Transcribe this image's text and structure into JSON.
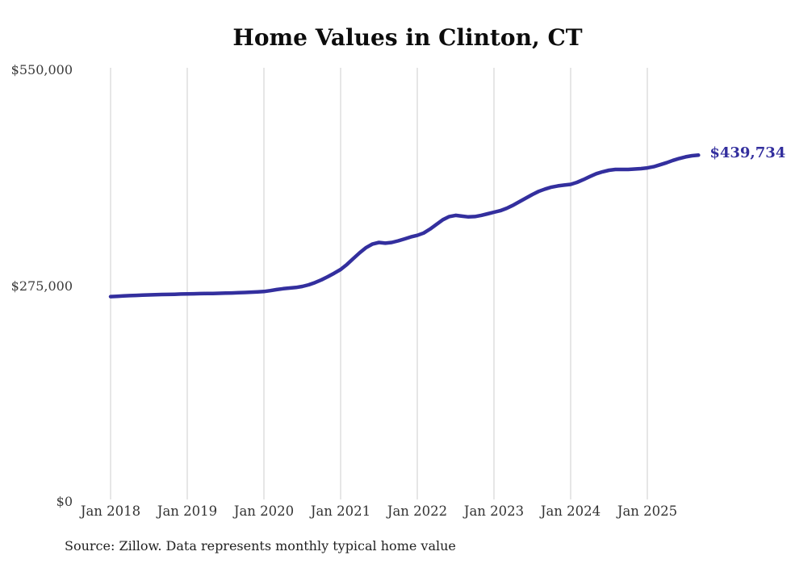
{
  "chart_data": {
    "type": "line",
    "title": "Home Values in Clinton, CT",
    "source": "Source: Zillow. Data represents monthly typical home value",
    "series_name": "Monthly typical home value",
    "end_label": "$439,734",
    "end_value": 439734,
    "ylim": [
      0,
      550000
    ],
    "grid": "vertical-only",
    "legend": "none",
    "x_ticks": [
      "Jan 2018",
      "Jan 2019",
      "Jan 2020",
      "Jan 2021",
      "Jan 2022",
      "Jan 2023",
      "Jan 2024",
      "Jan 2025"
    ],
    "y_ticks": [
      {
        "label": "$550,000",
        "value": 550000
      },
      {
        "label": "$275,000",
        "value": 275000
      },
      {
        "label": "$0",
        "value": 0
      }
    ],
    "months": [
      "2018-01",
      "2018-02",
      "2018-03",
      "2018-04",
      "2018-05",
      "2018-06",
      "2018-07",
      "2018-08",
      "2018-09",
      "2018-10",
      "2018-11",
      "2018-12",
      "2019-01",
      "2019-02",
      "2019-03",
      "2019-04",
      "2019-05",
      "2019-06",
      "2019-07",
      "2019-08",
      "2019-09",
      "2019-10",
      "2019-11",
      "2019-12",
      "2020-01",
      "2020-02",
      "2020-03",
      "2020-04",
      "2020-05",
      "2020-06",
      "2020-07",
      "2020-08",
      "2020-09",
      "2020-10",
      "2020-11",
      "2020-12",
      "2021-01",
      "2021-02",
      "2021-03",
      "2021-04",
      "2021-05",
      "2021-06",
      "2021-07",
      "2021-08",
      "2021-09",
      "2021-10",
      "2021-11",
      "2021-12",
      "2022-01",
      "2022-02",
      "2022-03",
      "2022-04",
      "2022-05",
      "2022-06",
      "2022-07",
      "2022-08",
      "2022-09",
      "2022-10",
      "2022-11",
      "2022-12",
      "2023-01",
      "2023-02",
      "2023-03",
      "2023-04",
      "2023-05",
      "2023-06",
      "2023-07",
      "2023-08",
      "2023-09",
      "2023-10",
      "2023-11",
      "2023-12",
      "2024-01",
      "2024-02",
      "2024-03",
      "2024-04",
      "2024-05",
      "2024-06",
      "2024-07",
      "2024-08",
      "2024-09",
      "2024-10",
      "2024-11",
      "2024-12",
      "2025-01",
      "2025-02",
      "2025-03",
      "2025-04",
      "2025-05",
      "2025-06",
      "2025-07",
      "2025-08",
      "2025-09"
    ],
    "values": [
      259500,
      259900,
      260300,
      260700,
      261000,
      261300,
      261600,
      261900,
      262100,
      262300,
      262500,
      262800,
      263000,
      263100,
      263300,
      263400,
      263500,
      263700,
      263900,
      264100,
      264400,
      264700,
      265100,
      265500,
      266000,
      267100,
      268400,
      269600,
      270400,
      271100,
      272400,
      274500,
      277400,
      280900,
      284900,
      289300,
      294000,
      300500,
      308000,
      315500,
      322000,
      326500,
      328500,
      327500,
      328500,
      330500,
      333000,
      335500,
      337500,
      340500,
      345500,
      351500,
      357500,
      361500,
      363000,
      362000,
      361000,
      361500,
      363000,
      365000,
      367000,
      369000,
      372000,
      376000,
      380500,
      385000,
      389500,
      393500,
      396500,
      399000,
      400500,
      401500,
      402500,
      405000,
      408500,
      412500,
      416000,
      418500,
      420500,
      421500,
      421500,
      421500,
      422000,
      422500,
      423500,
      425000,
      427500,
      430000,
      433000,
      435500,
      437500,
      439000,
      439734
    ],
    "colors": {
      "line": "#332f9e",
      "end_label": "#332f9e",
      "grid": "#cccccc",
      "axis_text": "#3b3b3b",
      "title_text": "#0c0c0c",
      "source_text": "#222222"
    }
  }
}
